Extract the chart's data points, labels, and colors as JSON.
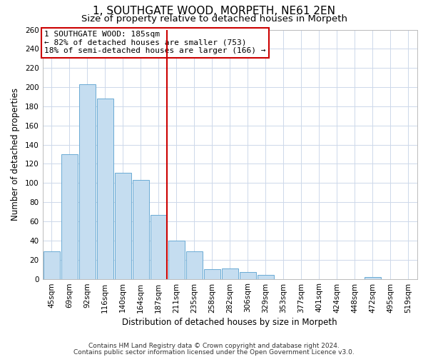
{
  "title": "1, SOUTHGATE WOOD, MORPETH, NE61 2EN",
  "subtitle": "Size of property relative to detached houses in Morpeth",
  "xlabel": "Distribution of detached houses by size in Morpeth",
  "ylabel": "Number of detached properties",
  "bar_labels": [
    "45sqm",
    "69sqm",
    "92sqm",
    "116sqm",
    "140sqm",
    "164sqm",
    "187sqm",
    "211sqm",
    "235sqm",
    "258sqm",
    "282sqm",
    "306sqm",
    "329sqm",
    "353sqm",
    "377sqm",
    "401sqm",
    "424sqm",
    "448sqm",
    "472sqm",
    "495sqm",
    "519sqm"
  ],
  "bar_values": [
    29,
    130,
    203,
    188,
    111,
    103,
    67,
    40,
    29,
    10,
    11,
    7,
    4,
    0,
    0,
    0,
    0,
    0,
    2,
    0,
    0
  ],
  "bar_color": "#c5ddf0",
  "bar_edge_color": "#6aaad4",
  "highlight_bar_index": 6,
  "highlight_line_color": "#cc0000",
  "ylim": [
    0,
    260
  ],
  "yticks": [
    0,
    20,
    40,
    60,
    80,
    100,
    120,
    140,
    160,
    180,
    200,
    220,
    240,
    260
  ],
  "annotation_line1": "1 SOUTHGATE WOOD: 185sqm",
  "annotation_line2": "← 82% of detached houses are smaller (753)",
  "annotation_line3": "18% of semi-detached houses are larger (166) →",
  "footnote1": "Contains HM Land Registry data © Crown copyright and database right 2024.",
  "footnote2": "Contains public sector information licensed under the Open Government Licence v3.0.",
  "background_color": "#ffffff",
  "grid_color": "#cdd8ea",
  "title_fontsize": 11,
  "subtitle_fontsize": 9.5,
  "xlabel_fontsize": 8.5,
  "ylabel_fontsize": 8.5,
  "tick_fontsize": 7.5,
  "annotation_fontsize": 8,
  "footnote_fontsize": 6.5
}
